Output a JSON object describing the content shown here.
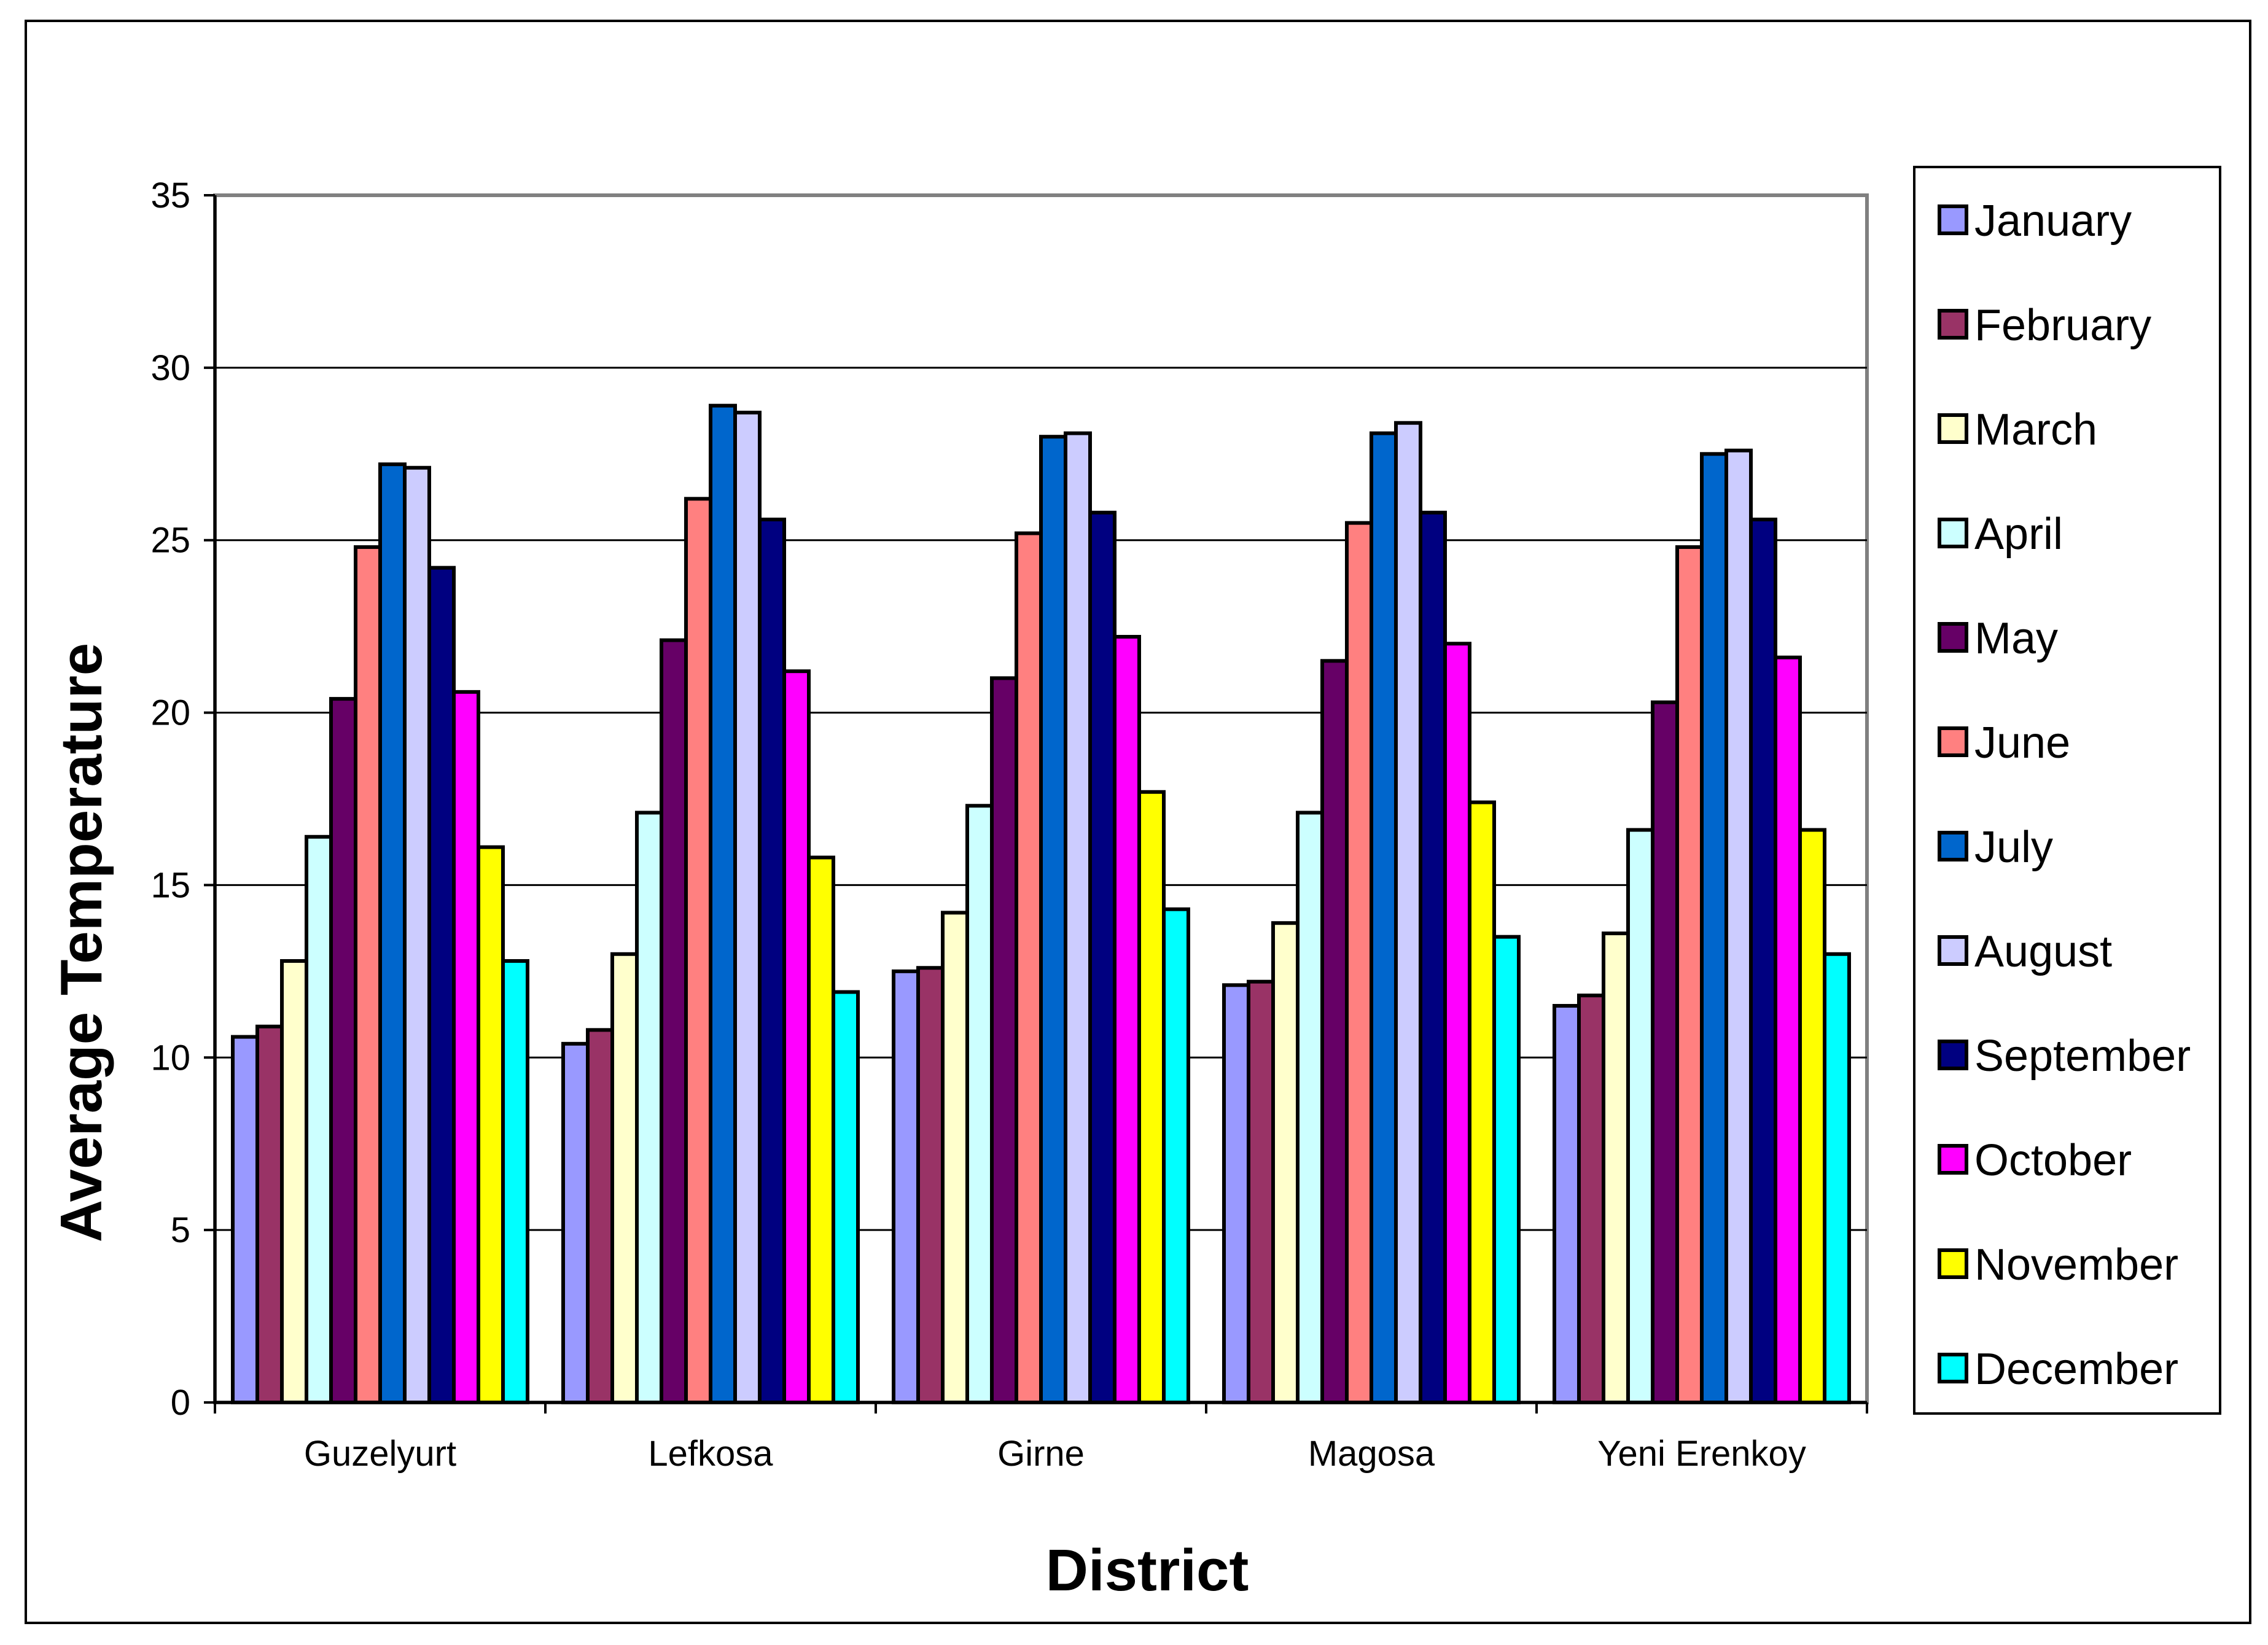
{
  "chart_data": {
    "type": "bar",
    "xlabel": "District",
    "ylabel": "Average Temperature",
    "ylim": [
      0,
      35
    ],
    "yticks": [
      0,
      5,
      10,
      15,
      20,
      25,
      30,
      35
    ],
    "grid": true,
    "legend_position": "right",
    "categories": [
      "Guzelyurt",
      "Lefkosa",
      "Girne",
      "Magosa",
      "Yeni Erenkoy"
    ],
    "series": [
      {
        "name": "January",
        "color": "#9999FF",
        "values": [
          10.6,
          10.4,
          12.5,
          12.1,
          11.5
        ]
      },
      {
        "name": "February",
        "color": "#993366",
        "values": [
          10.9,
          10.8,
          12.6,
          12.2,
          11.8
        ]
      },
      {
        "name": "March",
        "color": "#FFFFCC",
        "values": [
          12.8,
          13.0,
          14.2,
          13.9,
          13.6
        ]
      },
      {
        "name": "April",
        "color": "#CCFFFF",
        "values": [
          16.4,
          17.1,
          17.3,
          17.1,
          16.6
        ]
      },
      {
        "name": "May",
        "color": "#660066",
        "values": [
          20.4,
          22.1,
          21.0,
          21.5,
          20.3
        ]
      },
      {
        "name": "June",
        "color": "#FF8080",
        "values": [
          24.8,
          26.2,
          25.2,
          25.5,
          24.8
        ]
      },
      {
        "name": "July",
        "color": "#0066CC",
        "values": [
          27.2,
          28.9,
          28.0,
          28.1,
          27.5
        ]
      },
      {
        "name": "August",
        "color": "#CCCCFF",
        "values": [
          27.1,
          28.7,
          28.1,
          28.4,
          27.6
        ]
      },
      {
        "name": "September",
        "color": "#000080",
        "values": [
          24.2,
          25.6,
          25.8,
          25.8,
          25.6
        ]
      },
      {
        "name": "October",
        "color": "#FF00FF",
        "values": [
          20.6,
          21.2,
          22.2,
          22.0,
          21.6
        ]
      },
      {
        "name": "November",
        "color": "#FFFF00",
        "values": [
          16.1,
          15.8,
          17.7,
          17.4,
          16.6
        ]
      },
      {
        "name": "December",
        "color": "#00FFFF",
        "values": [
          12.8,
          11.9,
          14.3,
          13.5,
          13.0
        ]
      }
    ]
  }
}
